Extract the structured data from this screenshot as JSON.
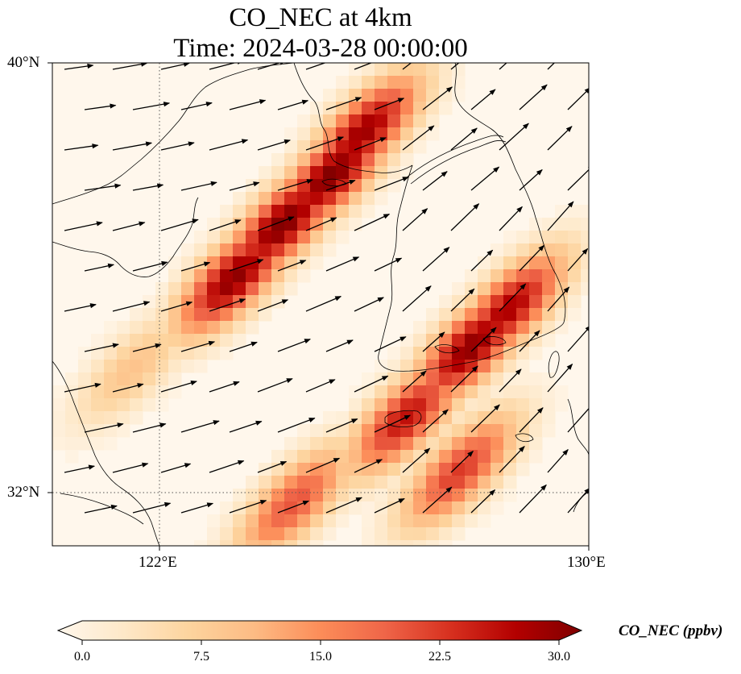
{
  "title": {
    "line1": "CO_NEC at 4km",
    "line2": "Time: 2024-03-28 00:00:00"
  },
  "map": {
    "lat_range": [
      31.0,
      40.0
    ],
    "lon_range": [
      120.0,
      130.0
    ],
    "lat_labels": [
      "40°N",
      "32°N"
    ],
    "lon_labels": [
      "122°E",
      "130°E"
    ],
    "gridlines": {
      "lon": 122,
      "lat": 32,
      "style": "dotted"
    }
  },
  "colorbar": {
    "label": "CO_NEC (ppbv)",
    "ticks": [
      "0.0",
      "7.5",
      "15.0",
      "22.5",
      "30.0"
    ],
    "min": 0,
    "max": 30,
    "colormap": "OrRd",
    "colors": [
      "#fff7ec",
      "#fee8c8",
      "#fdd49e",
      "#fdbb84",
      "#fc8d59",
      "#ef6548",
      "#d7301f",
      "#b30000",
      "#7f0000"
    ]
  },
  "plumes": [
    {
      "lon": 125.2,
      "lat": 37.9,
      "value": 30
    },
    {
      "lon": 124.3,
      "lat": 37.0,
      "value": 30
    },
    {
      "lon": 123.4,
      "lat": 36.0,
      "value": 29
    },
    {
      "lon": 125.8,
      "lat": 38.7,
      "value": 28
    },
    {
      "lon": 127.8,
      "lat": 34.7,
      "value": 29
    },
    {
      "lon": 128.5,
      "lat": 35.4,
      "value": 27
    },
    {
      "lon": 126.6,
      "lat": 33.4,
      "value": 25
    },
    {
      "lon": 127.6,
      "lat": 32.4,
      "value": 22
    },
    {
      "lon": 124.5,
      "lat": 31.8,
      "value": 20
    },
    {
      "lon": 121.5,
      "lat": 34.3,
      "value": 10
    }
  ]
}
